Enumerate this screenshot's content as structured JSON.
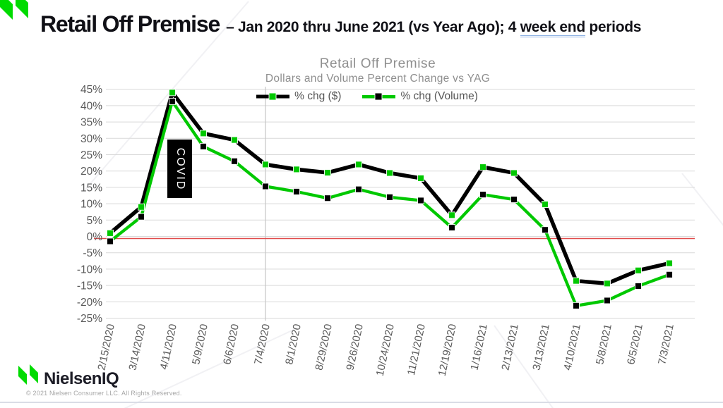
{
  "header": {
    "title": "Retail Off Premise",
    "subtitle_prefix": "– Jan 2020 thru June 2021 (vs Year Ago); 4 ",
    "subtitle_underlined": "week end",
    "subtitle_suffix": " periods"
  },
  "footer": {
    "brand": "NielsenIQ",
    "copyright": "© 2021 Nielsen Consumer LLC. All Rights Reserved."
  },
  "colors": {
    "brand_green": "#00DB00",
    "chart_green": "#00C800",
    "chart_black": "#000000",
    "zero_line_red": "#E04A4A",
    "gridline": "#D9D9D9",
    "vertical_gridline": "#C6C6C6",
    "tick_text": "#595959",
    "title_gray": "#8F8F8F",
    "annotation_bg": "#000000",
    "annotation_text": "#FFFFFF"
  },
  "chart_data": {
    "type": "line",
    "title": "Retail Off Premise",
    "subtitle": "Dollars and Volume Percent Change vs YAG",
    "annotation": "COVID",
    "legend_position": "top",
    "grid": true,
    "ylim": [
      -25,
      45
    ],
    "ytick_step": 5,
    "ytick_suffix": "%",
    "categories": [
      "2/15/2020",
      "3/14/2020",
      "4/11/2020",
      "5/9/2020",
      "6/6/2020",
      "7/4/2020",
      "8/1/2020",
      "8/29/2020",
      "9/26/2020",
      "10/24/2020",
      "11/21/2020",
      "12/19/2020",
      "1/16/2021",
      "2/13/2021",
      "3/13/2021",
      "4/10/2021",
      "5/8/2021",
      "6/5/2021",
      "7/3/2021"
    ],
    "series": [
      {
        "name": "% chg ($)",
        "line_color": "#000000",
        "marker_color": "#00C800",
        "values": [
          1,
          9,
          44,
          31.5,
          29.5,
          22,
          20.5,
          19.5,
          22,
          19.4,
          17.8,
          6.5,
          21.2,
          19.4,
          9.8,
          -13.6,
          -14.4,
          -10.4,
          -8.2
        ]
      },
      {
        "name": "% chg (Volume)",
        "line_color": "#00C800",
        "marker_color": "#000000",
        "values": [
          -1.5,
          6,
          41.3,
          27.5,
          23,
          15.3,
          13.7,
          11.7,
          14.4,
          12,
          11,
          2.7,
          12.8,
          11.3,
          2,
          -21.2,
          -19.6,
          -15.2,
          -11.7
        ]
      }
    ]
  }
}
